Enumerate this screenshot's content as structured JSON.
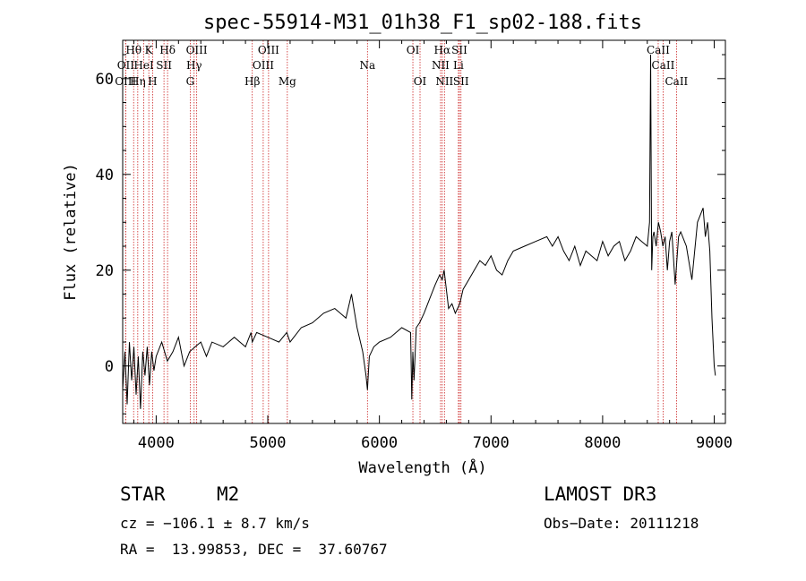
{
  "chart_data": {
    "type": "line",
    "title": "spec-55914-M31_01h38_F1_sp02-188.fits",
    "xlabel": "Wavelength (Å)",
    "ylabel": "Flux (relative)",
    "xlim": [
      3700,
      9100
    ],
    "ylim": [
      -12,
      68
    ],
    "xticks": [
      4000,
      5000,
      6000,
      7000,
      8000,
      9000
    ],
    "yticks": [
      0,
      20,
      40,
      60
    ],
    "grid": false,
    "series": [
      {
        "x": [
          3700,
          3720,
          3740,
          3760,
          3780,
          3800,
          3820,
          3840,
          3860,
          3880,
          3900,
          3920,
          3940,
          3960,
          3980,
          4000,
          4050,
          4100,
          4150,
          4200,
          4250,
          4300,
          4350,
          4400,
          4450,
          4500,
          4600,
          4700,
          4800,
          4850,
          4861,
          4900,
          5000,
          5100,
          5170,
          5200,
          5300,
          5400,
          5500,
          5600,
          5700,
          5750,
          5800,
          5850,
          5880,
          5893,
          5910,
          5950,
          6000,
          6100,
          6200,
          6280,
          6290,
          6300,
          6310,
          6330,
          6360,
          6400,
          6450,
          6500,
          6540,
          6563,
          6580,
          6600,
          6620,
          6650,
          6680,
          6700,
          6720,
          6750,
          6800,
          6850,
          6900,
          6950,
          7000,
          7050,
          7100,
          7150,
          7200,
          7300,
          7400,
          7500,
          7550,
          7600,
          7650,
          7700,
          7750,
          7800,
          7850,
          7900,
          7950,
          8000,
          8050,
          8100,
          8150,
          8200,
          8250,
          8300,
          8350,
          8400,
          8420,
          8430,
          8440,
          8450,
          8460,
          8480,
          8500,
          8520,
          8540,
          8560,
          8580,
          8600,
          8620,
          8650,
          8680,
          8700,
          8750,
          8800,
          8850,
          8900,
          8920,
          8940,
          8960,
          8980,
          9000,
          9010
        ],
        "y": [
          -5,
          3,
          -8,
          5,
          -3,
          4,
          -6,
          2,
          -9,
          3,
          -2,
          4,
          -4,
          3,
          -1,
          2,
          5,
          1,
          3,
          6,
          0,
          3,
          4,
          5,
          2,
          5,
          4,
          6,
          4,
          7,
          5,
          7,
          6,
          5,
          7,
          5,
          8,
          9,
          11,
          12,
          10,
          15,
          8,
          3,
          -2,
          -5,
          2,
          4,
          5,
          6,
          8,
          7,
          -7,
          3,
          -3,
          8,
          9,
          11,
          14,
          17,
          19,
          18,
          20,
          16,
          12,
          13,
          11,
          12,
          13,
          16,
          18,
          20,
          22,
          21,
          23,
          20,
          19,
          22,
          24,
          25,
          26,
          27,
          25,
          27,
          24,
          22,
          25,
          21,
          24,
          23,
          22,
          26,
          23,
          25,
          26,
          22,
          24,
          27,
          26,
          25,
          30,
          65,
          20,
          27,
          28,
          25,
          30,
          28,
          25,
          27,
          20,
          26,
          28,
          17,
          27,
          28,
          25,
          18,
          30,
          33,
          27,
          30,
          24,
          10,
          0,
          -2
        ]
      }
    ],
    "spectral_lines": [
      {
        "label": "Hθ",
        "x": 3798,
        "row": 0
      },
      {
        "label": "OII",
        "x": 3727,
        "row": 1
      },
      {
        "label": "OIII",
        "x": 3726,
        "row": 2
      },
      {
        "label": "Hη",
        "x": 3835,
        "row": 2
      },
      {
        "label": "K",
        "x": 3934,
        "row": 0
      },
      {
        "label": "HeI",
        "x": 3889,
        "row": 1
      },
      {
        "label": "SII",
        "x": 4070,
        "row": 1
      },
      {
        "label": "H",
        "x": 3968,
        "row": 2
      },
      {
        "label": "Hδ",
        "x": 4102,
        "row": 0
      },
      {
        "label": "OIII",
        "x": 4363,
        "row": 0
      },
      {
        "label": "Hγ",
        "x": 4340,
        "row": 1
      },
      {
        "label": "G",
        "x": 4305,
        "row": 2
      },
      {
        "label": "Hβ",
        "x": 4861,
        "row": 2
      },
      {
        "label": "OIII",
        "x": 5007,
        "row": 0
      },
      {
        "label": "OIII",
        "x": 4959,
        "row": 1
      },
      {
        "label": "Mg",
        "x": 5175,
        "row": 2
      },
      {
        "label": "Na",
        "x": 5893,
        "row": 1
      },
      {
        "label": "OI",
        "x": 6300,
        "row": 0
      },
      {
        "label": "OI",
        "x": 6364,
        "row": 2
      },
      {
        "label": "Hα",
        "x": 6563,
        "row": 0
      },
      {
        "label": "NII",
        "x": 6548,
        "row": 1
      },
      {
        "label": "NII",
        "x": 6583,
        "row": 2
      },
      {
        "label": "SII",
        "x": 6717,
        "row": 0
      },
      {
        "label": "Li",
        "x": 6708,
        "row": 1
      },
      {
        "label": "SII",
        "x": 6731,
        "row": 2
      },
      {
        "label": "CaII",
        "x": 8498,
        "row": 0
      },
      {
        "label": "CaII",
        "x": 8542,
        "row": 1
      },
      {
        "label": "CaII",
        "x": 8662,
        "row": 2
      }
    ]
  },
  "info": {
    "object_class": "STAR",
    "subclass": "M2",
    "survey": "LAMOST DR3",
    "cz": "cz = −106.1 ± 8.7 km/s",
    "obs_date": "Obs−Date: 20111218",
    "coords": "RA =  13.99853, DEC =  37.60767"
  },
  "colors": {
    "line_marker": "#cc2222",
    "spectrum": "#000000"
  }
}
